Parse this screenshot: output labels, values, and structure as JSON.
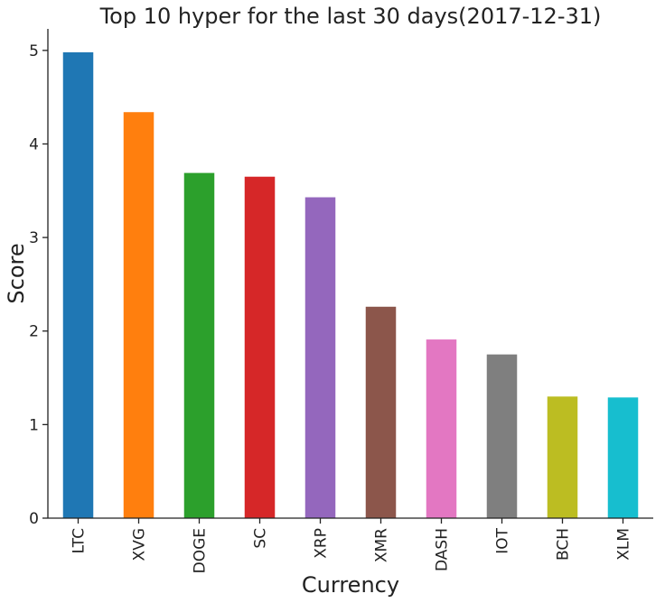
{
  "chart_data": {
    "type": "bar",
    "title": "Top 10 hyper for the last 30 days(2017-12-31)",
    "xlabel": "Currency",
    "ylabel": "Score",
    "categories": [
      "LTC",
      "XVG",
      "DOGE",
      "SC",
      "XRP",
      "XMR",
      "DASH",
      "IOT",
      "BCH",
      "XLM"
    ],
    "values": [
      4.98,
      4.34,
      3.69,
      3.65,
      3.43,
      2.26,
      1.91,
      1.75,
      1.3,
      1.29
    ],
    "colors": [
      "#1f77b4",
      "#ff7f0e",
      "#2ca02c",
      "#d62728",
      "#9467bd",
      "#8c564b",
      "#e377c2",
      "#7f7f7f",
      "#bcbd22",
      "#17becf"
    ],
    "ylim": [
      0,
      5.23
    ],
    "yticks": [
      "0",
      "1",
      "2",
      "3",
      "4",
      "5"
    ],
    "grid": false,
    "legend": "none"
  }
}
